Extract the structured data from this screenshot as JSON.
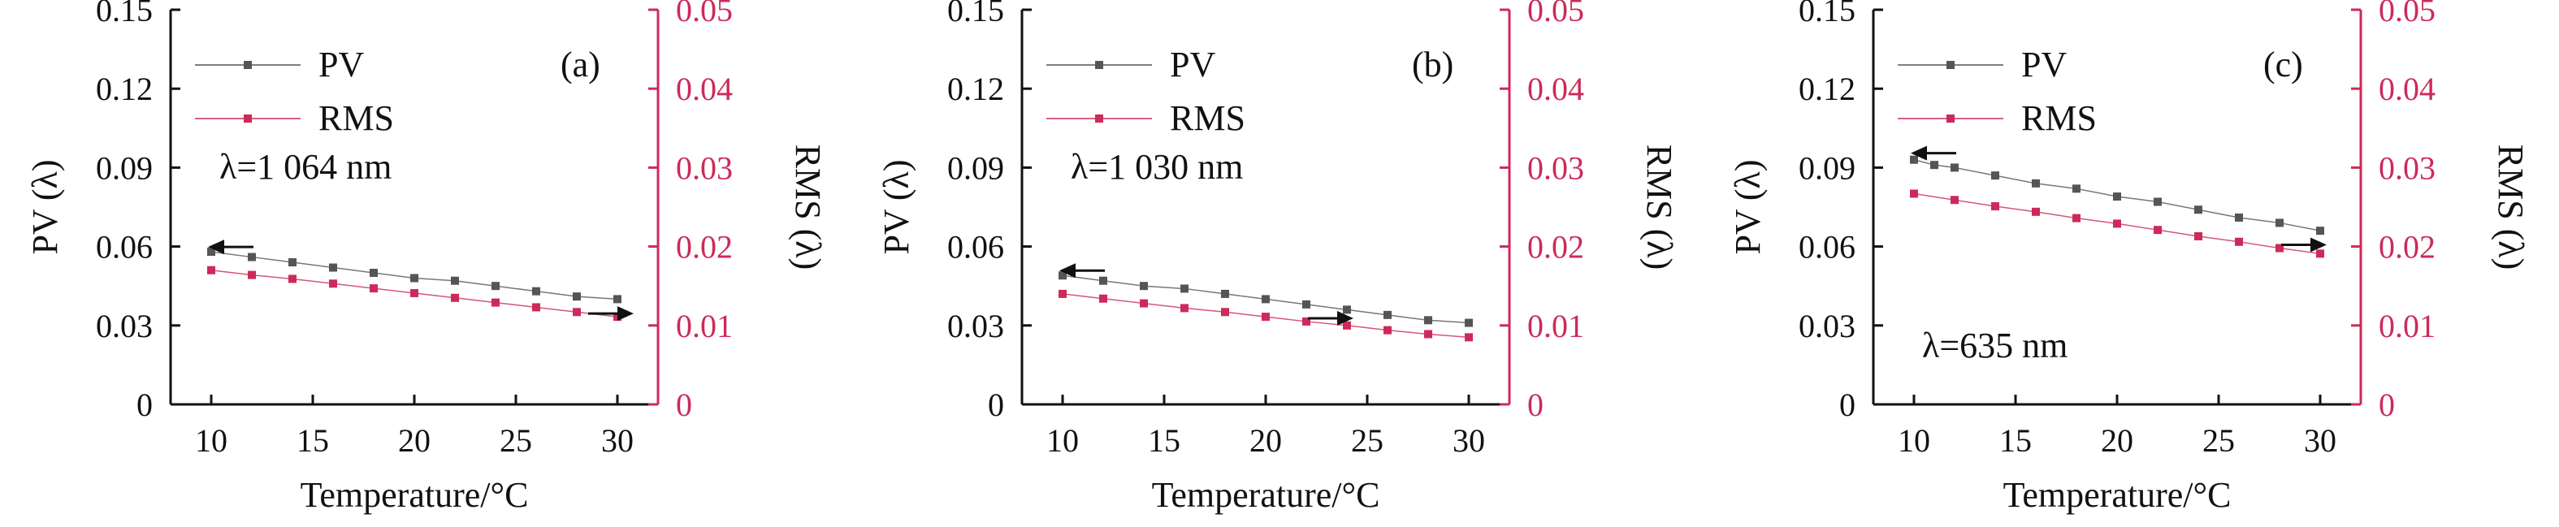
{
  "chart_data": [
    {
      "type": "line",
      "panel_label": "(a)",
      "annotation": "λ=1 064 nm",
      "xlabel": "Temperature/°C",
      "ylabel_left": "PV (λ)",
      "ylabel_right": "RMS (λ)",
      "xlim": [
        8,
        32
      ],
      "ylim_left": [
        0,
        0.15
      ],
      "ylim_right": [
        0,
        0.05
      ],
      "x_ticks": [
        10,
        15,
        20,
        25,
        30
      ],
      "y_ticks_left": [
        "0",
        "0.03",
        "0.06",
        "0.09",
        "0.12",
        "0.15"
      ],
      "y_ticks_right": [
        "0",
        "0.01",
        "0.02",
        "0.03",
        "0.04",
        "0.05"
      ],
      "legend": [
        "PV",
        "RMS"
      ],
      "series": [
        {
          "name": "PV",
          "axis": "left",
          "color": "#555555",
          "x": [
            10,
            12,
            14,
            16,
            18,
            20,
            22,
            24,
            26,
            28,
            30
          ],
          "values": [
            0.058,
            0.056,
            0.054,
            0.052,
            0.05,
            0.048,
            0.047,
            0.045,
            0.043,
            0.041,
            0.04
          ]
        },
        {
          "name": "RMS",
          "axis": "right",
          "color": "#cc2a5a",
          "x": [
            10,
            12,
            14,
            16,
            18,
            20,
            22,
            24,
            26,
            28,
            30
          ],
          "values": [
            0.017,
            0.0164,
            0.0159,
            0.0153,
            0.0147,
            0.0141,
            0.0135,
            0.0129,
            0.0123,
            0.0117,
            0.0111
          ]
        }
      ]
    },
    {
      "type": "line",
      "panel_label": "(b)",
      "annotation": "λ=1 030 nm",
      "xlabel": "Temperature/°C",
      "ylabel_left": "PV (λ)",
      "ylabel_right": "RMS (λ)",
      "xlim": [
        8,
        32
      ],
      "ylim_left": [
        0,
        0.15
      ],
      "ylim_right": [
        0,
        0.05
      ],
      "x_ticks": [
        10,
        15,
        20,
        25,
        30
      ],
      "y_ticks_left": [
        "0",
        "0.03",
        "0.06",
        "0.09",
        "0.12",
        "0.15"
      ],
      "y_ticks_right": [
        "0",
        "0.01",
        "0.02",
        "0.03",
        "0.04",
        "0.05"
      ],
      "legend": [
        "PV",
        "RMS"
      ],
      "series": [
        {
          "name": "PV",
          "axis": "left",
          "color": "#555555",
          "x": [
            10,
            12,
            14,
            16,
            18,
            20,
            22,
            24,
            26,
            28,
            30
          ],
          "values": [
            0.049,
            0.047,
            0.045,
            0.044,
            0.042,
            0.04,
            0.038,
            0.036,
            0.034,
            0.032,
            0.031
          ]
        },
        {
          "name": "RMS",
          "axis": "right",
          "color": "#cc2a5a",
          "x": [
            10,
            12,
            14,
            16,
            18,
            20,
            22,
            24,
            26,
            28,
            30
          ],
          "values": [
            0.014,
            0.0134,
            0.0128,
            0.0122,
            0.0117,
            0.0111,
            0.0105,
            0.01,
            0.0094,
            0.0089,
            0.0085
          ]
        }
      ]
    },
    {
      "type": "line",
      "panel_label": "(c)",
      "annotation": "λ=635 nm",
      "xlabel": "Temperature/°C",
      "ylabel_left": "PV (λ)",
      "ylabel_right": "RMS (λ)",
      "xlim": [
        8,
        32
      ],
      "ylim_left": [
        0,
        0.15
      ],
      "ylim_right": [
        0,
        0.05
      ],
      "x_ticks": [
        10,
        15,
        20,
        25,
        30
      ],
      "y_ticks_left": [
        "0",
        "0.03",
        "0.06",
        "0.09",
        "0.12",
        "0.15"
      ],
      "y_ticks_right": [
        "0",
        "0.01",
        "0.02",
        "0.03",
        "0.04",
        "0.05"
      ],
      "legend": [
        "PV",
        "RMS"
      ],
      "series": [
        {
          "name": "PV",
          "axis": "left",
          "color": "#555555",
          "x": [
            10,
            11,
            12,
            14,
            16,
            18,
            20,
            22,
            24,
            26,
            28,
            30
          ],
          "values": [
            0.093,
            0.091,
            0.09,
            0.087,
            0.084,
            0.082,
            0.079,
            0.077,
            0.074,
            0.071,
            0.069,
            0.066
          ]
        },
        {
          "name": "RMS",
          "axis": "right",
          "color": "#cc2a5a",
          "x": [
            10,
            12,
            14,
            16,
            18,
            20,
            22,
            24,
            26,
            28,
            30
          ],
          "values": [
            0.0267,
            0.0259,
            0.0251,
            0.0244,
            0.0236,
            0.0229,
            0.0221,
            0.0213,
            0.0206,
            0.0198,
            0.0191
          ]
        }
      ]
    }
  ]
}
